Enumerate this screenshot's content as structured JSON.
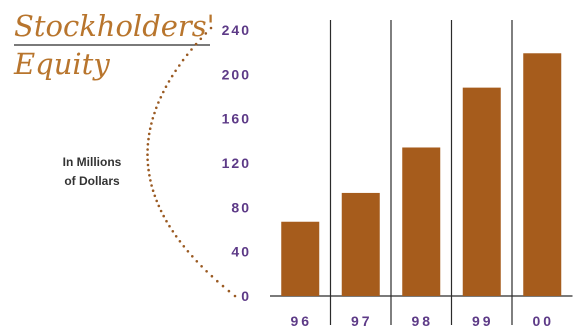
{
  "chart_data": {
    "type": "bar",
    "title_lines": [
      "Stockholders'",
      "Equity"
    ],
    "ylabel_lines": [
      "In Millions",
      "of Dollars"
    ],
    "xlabel": "",
    "categories": [
      "96",
      "97",
      "98",
      "99",
      "00"
    ],
    "values": [
      67,
      93,
      134,
      188,
      219
    ],
    "yticks": [
      "0",
      "40",
      "80",
      "120",
      "160",
      "200",
      "240"
    ],
    "ylim": [
      0,
      240
    ],
    "grid": false,
    "legend": "none",
    "colors": {
      "bar": "#a65c1c",
      "tick_label": "#5d3a87",
      "title": "#b8752d",
      "dots": "#9a5a22",
      "divider": "#2b2b2b",
      "ylabel": "#333333"
    }
  }
}
